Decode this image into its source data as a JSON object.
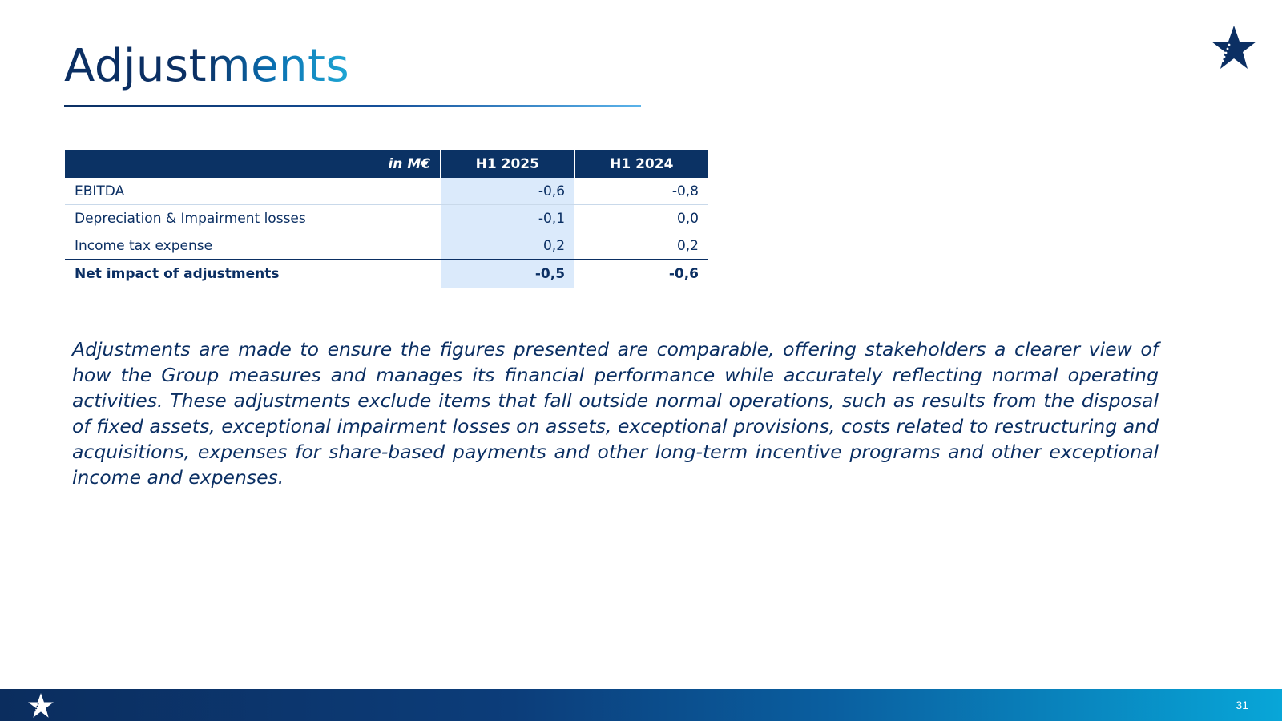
{
  "slide": {
    "title": "Adjustments",
    "page_number": "31"
  },
  "table": {
    "header": {
      "unit": "in M€",
      "col1": "H1 2025",
      "col2": "H1 2024"
    },
    "rows": [
      {
        "label": "EBITDA",
        "h1_2025": "-0,6",
        "h1_2024": "-0,8"
      },
      {
        "label": "Depreciation & Impairment losses",
        "h1_2025": "-0,1",
        "h1_2024": "0,0"
      },
      {
        "label": "Income tax expense",
        "h1_2025": "0,2",
        "h1_2024": "0,2"
      },
      {
        "label": "Net impact of adjustments",
        "h1_2025": "-0,5",
        "h1_2024": "-0,6"
      }
    ]
  },
  "note": "Adjustments are made to ensure the figures presented are comparable, offering stakeholders a clearer view of how the Group measures and manages its financial performance while accurately reflecting normal operating activities. These adjustments exclude items that fall outside normal operations, such as results from the disposal of fixed assets, exceptional impairment losses on assets, exceptional provisions, costs related to restructuring and acquisitions, expenses for share-based payments and other long-term incentive programs and other exceptional income and expenses.",
  "colors": {
    "navy": "#0b2f63",
    "accent": "#1fa9d6",
    "highlight": "#dbeafb"
  },
  "icons": {
    "logo": "star-logo-icon"
  }
}
